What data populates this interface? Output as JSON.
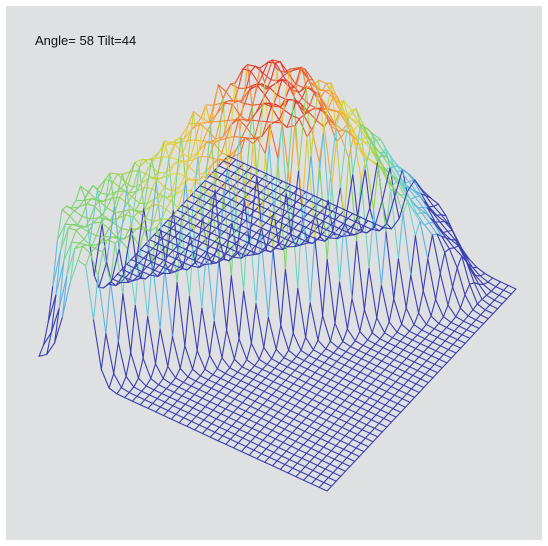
{
  "readout": {
    "angle_label": "Angle=",
    "angle": 58,
    "tilt_label": "Tilt=",
    "tilt": 44
  },
  "chart_data": {
    "type": "surface-wireframe",
    "title": "",
    "grid": true,
    "legend": "none",
    "view": {
      "angle": 58,
      "tilt": 44
    },
    "x": {
      "range": [
        0,
        1
      ],
      "samples": 42
    },
    "y": {
      "range": [
        0,
        1
      ],
      "samples": 38
    },
    "z": {
      "range": [
        0,
        1
      ]
    },
    "surface": {
      "base_height": 0,
      "ridge": {
        "start": [
          0.08,
          0.05
        ],
        "end": [
          0.95,
          0.78
        ],
        "half_width": 0.13,
        "heights_along_ridge": [
          0.55,
          0.58,
          0.62,
          0.7,
          0.8,
          0.92,
          1.0,
          0.96,
          0.82,
          0.62,
          0.4,
          0.22
        ]
      }
    },
    "colormap": [
      "#3b3fb0",
      "#5aa7e8",
      "#6fd6d0",
      "#7fd35c",
      "#e8d640",
      "#f3973b",
      "#e0342b"
    ]
  }
}
